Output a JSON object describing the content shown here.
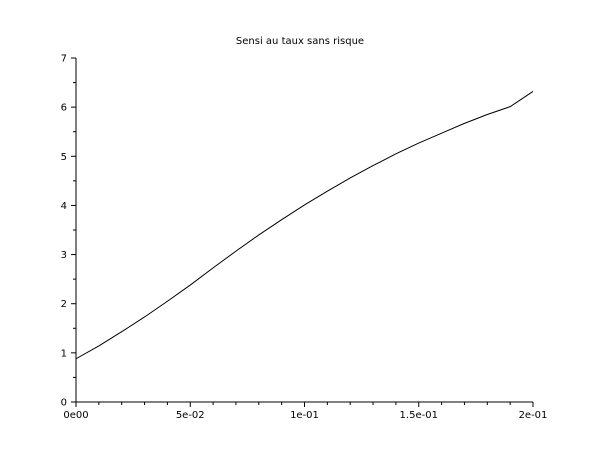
{
  "chart_data": {
    "type": "line",
    "title": "Sensi au taux sans risque",
    "xlabel": "",
    "ylabel": "",
    "xlim": [
      0,
      0.2
    ],
    "ylim": [
      0,
      7
    ],
    "grid": false,
    "x_ticks": [
      {
        "value": 0,
        "label": "0e00"
      },
      {
        "value": 0.05,
        "label": "5e-02"
      },
      {
        "value": 0.1,
        "label": "1e-01"
      },
      {
        "value": 0.15,
        "label": "1.5e-01"
      },
      {
        "value": 0.2,
        "label": "2e-01"
      }
    ],
    "y_ticks": [
      {
        "value": 0,
        "label": "0"
      },
      {
        "value": 1,
        "label": "1"
      },
      {
        "value": 2,
        "label": "2"
      },
      {
        "value": 3,
        "label": "3"
      },
      {
        "value": 4,
        "label": "4"
      },
      {
        "value": 5,
        "label": "5"
      },
      {
        "value": 6,
        "label": "6"
      },
      {
        "value": 7,
        "label": "7"
      }
    ],
    "series": [
      {
        "x": [
          0,
          0.01,
          0.02,
          0.03,
          0.04,
          0.05,
          0.06,
          0.07,
          0.08,
          0.09,
          0.1,
          0.11,
          0.12,
          0.13,
          0.14,
          0.15,
          0.16,
          0.17,
          0.18,
          0.19,
          0.2
        ],
        "values": [
          0.88,
          1.14,
          1.43,
          1.73,
          2.05,
          2.38,
          2.73,
          3.07,
          3.4,
          3.71,
          4.01,
          4.29,
          4.56,
          4.81,
          5.05,
          5.27,
          5.47,
          5.67,
          5.85,
          6.01,
          6.32
        ]
      }
    ]
  }
}
